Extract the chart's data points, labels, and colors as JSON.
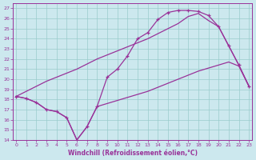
{
  "bg_color": "#cce8ee",
  "line_color": "#993399",
  "grid_color": "#99cccc",
  "xlabel": "Windchill (Refroidissement éolien,°C)",
  "xlim": [
    -0.3,
    23.3
  ],
  "ylim": [
    14,
    27.5
  ],
  "xticks": [
    0,
    1,
    2,
    3,
    4,
    5,
    6,
    7,
    8,
    9,
    10,
    11,
    12,
    13,
    14,
    15,
    16,
    17,
    18,
    19,
    20,
    21,
    22,
    23
  ],
  "yticks": [
    14,
    15,
    16,
    17,
    18,
    19,
    20,
    21,
    22,
    23,
    24,
    25,
    26,
    27
  ],
  "curve_x": [
    0,
    1,
    2,
    3,
    4,
    5,
    6,
    7,
    8,
    9,
    10,
    11,
    12,
    13,
    14,
    15,
    16,
    17,
    18,
    19,
    20,
    21,
    22,
    23
  ],
  "curve_y": [
    18.3,
    18.1,
    17.7,
    17.0,
    16.8,
    16.2,
    14.0,
    15.3,
    17.3,
    20.2,
    21.0,
    22.3,
    24.0,
    24.6,
    25.9,
    26.6,
    26.8,
    26.8,
    26.7,
    26.3,
    25.2,
    23.3,
    21.4,
    19.3
  ],
  "diag_x": [
    0,
    1,
    2,
    3,
    4,
    5,
    6,
    7,
    8,
    9,
    10,
    11,
    12,
    13,
    14,
    15,
    16,
    17,
    18,
    19,
    20,
    21,
    22,
    23
  ],
  "diag_y": [
    18.3,
    18.8,
    19.3,
    19.8,
    20.2,
    20.6,
    21.0,
    21.5,
    22.0,
    22.4,
    22.8,
    23.2,
    23.6,
    24.0,
    24.5,
    25.0,
    25.5,
    26.2,
    26.5,
    25.8,
    25.2,
    23.3,
    21.4,
    19.3
  ],
  "flat_x": [
    0,
    1,
    2,
    3,
    4,
    5,
    6,
    7,
    8,
    9,
    10,
    11,
    12,
    13,
    14,
    15,
    16,
    17,
    18,
    19,
    20,
    21,
    22,
    23
  ],
  "flat_y": [
    18.3,
    18.1,
    17.7,
    17.0,
    16.8,
    16.2,
    14.0,
    15.3,
    17.3,
    17.6,
    17.9,
    18.2,
    18.5,
    18.8,
    19.2,
    19.6,
    20.0,
    20.4,
    20.8,
    21.1,
    21.4,
    21.7,
    21.3,
    19.3
  ]
}
